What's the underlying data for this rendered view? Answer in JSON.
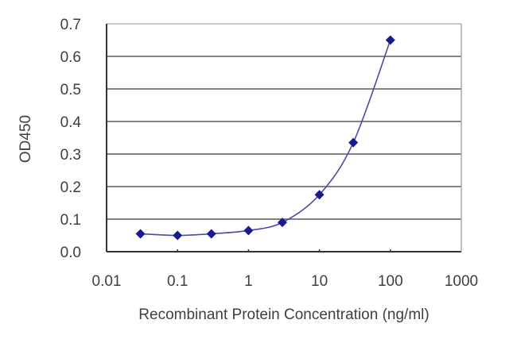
{
  "chart_data": {
    "type": "line",
    "title": "",
    "xlabel": "Recombinant Protein Concentration (ng/ml)",
    "ylabel": "OD450",
    "xscale": "log",
    "xlim": [
      0.01,
      1000
    ],
    "ylim": [
      0.0,
      0.7
    ],
    "x_ticks": [
      "0.01",
      "0.1",
      "1",
      "10",
      "100",
      "1000"
    ],
    "y_ticks": [
      "0.0",
      "0.1",
      "0.2",
      "0.3",
      "0.4",
      "0.5",
      "0.6",
      "0.7"
    ],
    "grid": {
      "horizontal": true,
      "vertical": false
    },
    "legend": null,
    "series": [
      {
        "name": "OD450",
        "color": "#1a1a8c",
        "marker": "diamond",
        "x": [
          0.03,
          0.1,
          0.3,
          1,
          3,
          10,
          30,
          100
        ],
        "values": [
          0.055,
          0.05,
          0.055,
          0.065,
          0.09,
          0.175,
          0.335,
          0.65
        ]
      }
    ]
  }
}
